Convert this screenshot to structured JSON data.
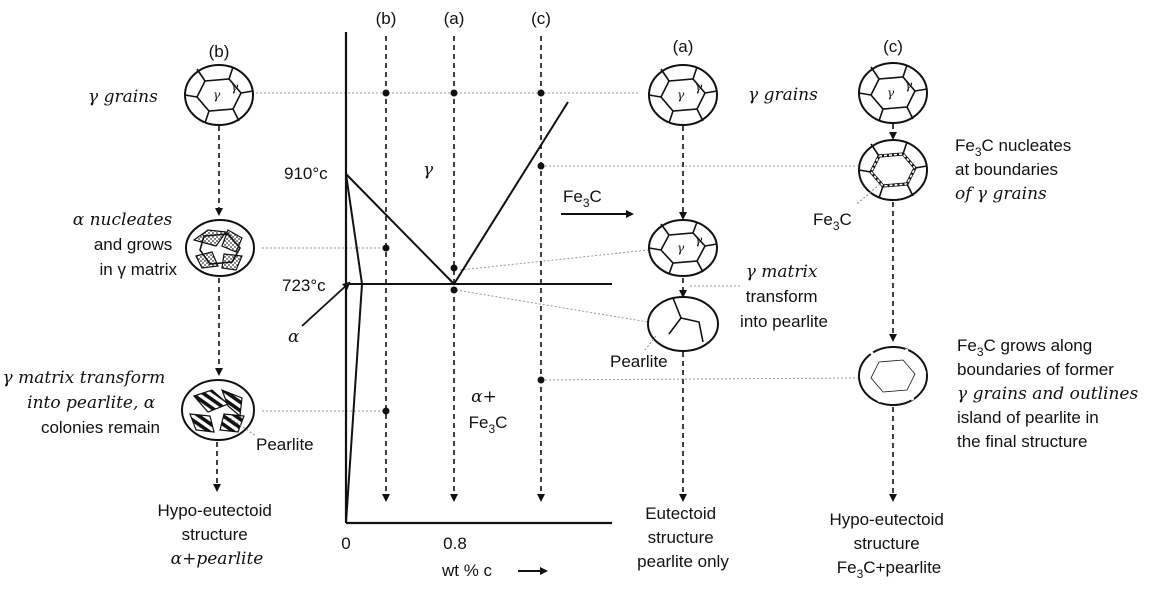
{
  "columns": {
    "b_left": "(b)",
    "b_axis": "(b)",
    "a_axis": "(a)",
    "c_axis": "(c)",
    "a_right": "(a)",
    "c_right": "(c)"
  },
  "left": {
    "gamma_grains": "γ grains",
    "alpha_nucleates": [
      "α nucleates",
      "and grows",
      "in γ matrix"
    ],
    "transform": [
      "γ matrix transform",
      "into pearlite, α",
      "colonies remain"
    ],
    "pearlite": "Pearlite",
    "result": [
      "Hypo-eutectoid",
      "structure",
      "α+pearlite"
    ]
  },
  "phase_diagram": {
    "temp_910": "910°c",
    "temp_723": "723°c",
    "gamma": "γ",
    "alpha": "α",
    "alpha_fe3c": [
      "α+",
      "Fe",
      "3",
      "C"
    ],
    "fe3c_arrow": [
      "Fe",
      "3",
      "C"
    ],
    "x_tick_0": "0",
    "x_tick_08": "0.8",
    "x_label": "wt % c"
  },
  "middle_right": {
    "gamma_grains": "γ grains",
    "transform": [
      "γ matrix",
      "transform",
      "into pearlite"
    ],
    "pearlite": "Pearlite",
    "result": [
      "Eutectoid",
      "structure",
      "pearlite only"
    ]
  },
  "far_right": {
    "nucleates": [
      [
        "Fe",
        "3",
        "C nucleates"
      ],
      "at boundaries",
      "of γ grains"
    ],
    "fe3c_label": [
      "Fe",
      "3",
      "C"
    ],
    "grows": [
      [
        "Fe",
        "3",
        "C grows along"
      ],
      "boundaries of former",
      "γ grains and outlines",
      "island of pearlite in",
      "the final structure"
    ],
    "result": [
      "Hypo-eutectoid",
      "structure",
      [
        "Fe",
        "3",
        "C+pearlite"
      ]
    ]
  },
  "grain_symbols": {
    "gamma": "γ"
  }
}
